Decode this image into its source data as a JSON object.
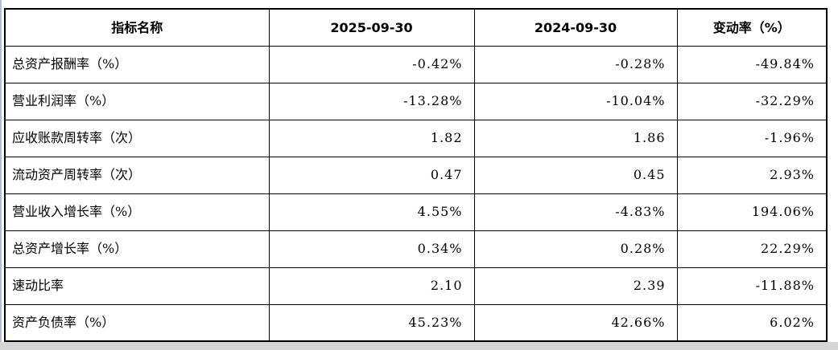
{
  "table": {
    "border_color": "#000000",
    "background_color": "#ffffff",
    "bottom_strip_color": "#d6d6d6",
    "left_edge_color": "#b3c0d4",
    "columns": [
      {
        "key": "name",
        "label": "指标名称",
        "align": "left"
      },
      {
        "key": "v2025",
        "label": "2025-09-30",
        "align": "right"
      },
      {
        "key": "v2024",
        "label": "2024-09-30",
        "align": "right"
      },
      {
        "key": "change",
        "label": "变动率（%）",
        "align": "right"
      }
    ],
    "rows": [
      {
        "name": "总资产报酬率（%）",
        "v2025": "-0.42%",
        "v2024": "-0.28%",
        "change": "-49.84%"
      },
      {
        "name": "营业利润率（%）",
        "v2025": "-13.28%",
        "v2024": "-10.04%",
        "change": "-32.29%"
      },
      {
        "name": "应收账款周转率（次）",
        "v2025": "1.82",
        "v2024": "1.86",
        "change": "-1.96%"
      },
      {
        "name": "流动资产周转率（次）",
        "v2025": "0.47",
        "v2024": "0.45",
        "change": "2.93%"
      },
      {
        "name": "营业收入增长率（%）",
        "v2025": "4.55%",
        "v2024": "-4.83%",
        "change": "194.06%"
      },
      {
        "name": "总资产增长率（%）",
        "v2025": "0.34%",
        "v2024": "0.28%",
        "change": "22.29%"
      },
      {
        "name": "速动比率",
        "v2025": "2.10",
        "v2024": "2.39",
        "change": "-11.88%"
      },
      {
        "name": "资产负债率（%）",
        "v2025": "45.23%",
        "v2024": "42.66%",
        "change": "6.02%"
      }
    ]
  },
  "chart_data": {
    "type": "table",
    "title": "",
    "columns": [
      "指标名称",
      "2025-09-30",
      "2024-09-30",
      "变动率（%）"
    ],
    "rows": [
      [
        "总资产报酬率（%）",
        "-0.42%",
        "-0.28%",
        "-49.84%"
      ],
      [
        "营业利润率（%）",
        "-13.28%",
        "-10.04%",
        "-32.29%"
      ],
      [
        "应收账款周转率（次）",
        "1.82",
        "1.86",
        "-1.96%"
      ],
      [
        "流动资产周转率（次）",
        "0.47",
        "0.45",
        "2.93%"
      ],
      [
        "营业收入增长率（%）",
        "4.55%",
        "-4.83%",
        "194.06%"
      ],
      [
        "总资产增长率（%）",
        "0.34%",
        "0.28%",
        "22.29%"
      ],
      [
        "速动比率",
        "2.10",
        "2.39",
        "-11.88%"
      ],
      [
        "资产负债率（%）",
        "45.23%",
        "42.66%",
        "6.02%"
      ]
    ]
  }
}
